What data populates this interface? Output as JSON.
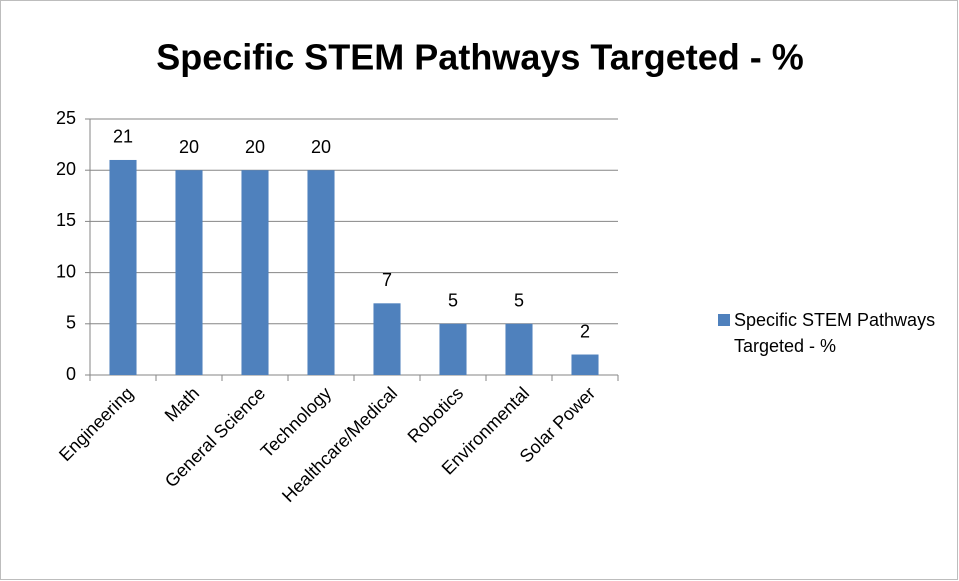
{
  "chart_data": {
    "type": "bar",
    "title": "Specific STEM Pathways Targeted - %",
    "categories": [
      "Engineering",
      "Math",
      "General Science",
      "Technology",
      "Healthcare/Medical",
      "Robotics",
      "Environmental",
      "Solar Power"
    ],
    "series": [
      {
        "name": "Specific STEM Pathways Targeted - %",
        "color": "#4f81bd",
        "values": [
          21,
          20,
          20,
          20,
          7,
          5,
          5,
          2
        ]
      }
    ],
    "ylim": [
      0,
      25
    ],
    "yticks": [
      0,
      5,
      10,
      15,
      20,
      25
    ],
    "grid": true,
    "legend": "right"
  }
}
